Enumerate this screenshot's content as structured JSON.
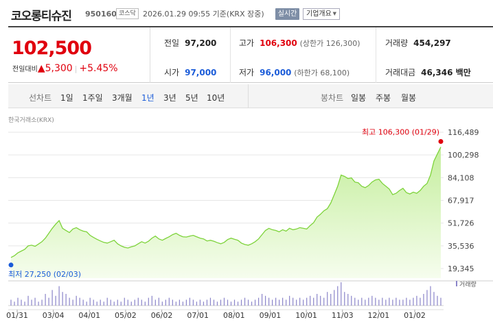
{
  "header": {
    "stock_name": "코오롱티슈진",
    "stock_code": "950160",
    "market": "코스닥",
    "datetime": "2026.01.29 09:55 기준(KRX 장중)",
    "realtime_label": "실시간",
    "overview_label": "기업개요"
  },
  "quote": {
    "current_price": "102,500",
    "change_label": "전일대비",
    "change_value": "5,300",
    "change_arrow": "▲",
    "change_pct": "+5.45%",
    "prev_close_label": "전일",
    "prev_close": "97,200",
    "open_label": "시가",
    "open": "97,000",
    "high_label": "고가",
    "high": "106,300",
    "upper_limit": "(상한가 126,300)",
    "low_label": "저가",
    "low": "96,000",
    "lower_limit": "(하한가 68,100)",
    "volume_label": "거래량",
    "volume": "454,297",
    "trade_value_label": "거래대금",
    "trade_value": "46,346 백만"
  },
  "toolbar": {
    "line_chart_label": "선차트",
    "periods": [
      "1일",
      "1주일",
      "3개월",
      "1년",
      "3년",
      "5년",
      "10년"
    ],
    "active_period": "1년",
    "candle_label": "봉차트",
    "candle_periods": [
      "일봉",
      "주봉",
      "월봉"
    ]
  },
  "source_label": "한국거래소(KRX)",
  "chart_data": {
    "type": "area",
    "y_ticks": [
      "116,489",
      "100,298",
      "84,108",
      "67,917",
      "51,726",
      "35,536",
      "19,345"
    ],
    "ylim": [
      19345,
      116489
    ],
    "x_ticks": [
      "01/31",
      "03/04",
      "04/01",
      "05/02",
      "06/02",
      "07/01",
      "08/01",
      "09/01",
      "10/01",
      "11/03",
      "12/01",
      "01/02"
    ],
    "max_label": "최고 106,300 (01/29)",
    "min_label": "최저 27,250 (02/03)",
    "volume_legend": "거래량",
    "series": [
      {
        "name": "",
        "values": [
          27250,
          28500,
          30500,
          31800,
          33000,
          35500,
          36000,
          35200,
          36800,
          38500,
          41000,
          44500,
          48000,
          51000,
          53500,
          48000,
          46500,
          45000,
          47500,
          48500,
          47000,
          46000,
          45500,
          43000,
          41500,
          40200,
          39000,
          38000,
          37500,
          38500,
          39500,
          37000,
          35500,
          34500,
          34000,
          34800,
          35500,
          37000,
          38500,
          37500,
          38800,
          41000,
          42500,
          40500,
          39500,
          40800,
          42000,
          43500,
          44500,
          43000,
          42000,
          41800,
          42500,
          43000,
          42000,
          41000,
          40500,
          39000,
          39500,
          38800,
          37800,
          37000,
          38000,
          40000,
          41000,
          40200,
          39500,
          37500,
          36500,
          36000,
          37000,
          38500,
          40500,
          43500,
          46500,
          48000,
          47000,
          46500,
          45500,
          47000,
          46000,
          48000,
          47000,
          47500,
          48500,
          48000,
          47500,
          50000,
          52000,
          56000,
          58000,
          60500,
          62000,
          66000,
          72000,
          78000,
          86000,
          85000,
          83500,
          84000,
          81000,
          80500,
          78000,
          77000,
          78500,
          81000,
          82500,
          83000,
          80000,
          78000,
          76000,
          72000,
          73000,
          75000,
          76500,
          73500,
          72500,
          73800,
          73000,
          75000,
          78000,
          80000,
          86000,
          96000,
          101000,
          106000
        ]
      },
      {
        "name": "거래량",
        "values": [
          3,
          2,
          4,
          3,
          2,
          5,
          3,
          4,
          2,
          3,
          6,
          4,
          8,
          5,
          10,
          7,
          6,
          4,
          3,
          5,
          4,
          3,
          2,
          4,
          3,
          2,
          3,
          2,
          4,
          3,
          2,
          3,
          2,
          4,
          3,
          2,
          3,
          4,
          3,
          2,
          4,
          5,
          3,
          4,
          2,
          3,
          4,
          3,
          2,
          3,
          2,
          3,
          4,
          3,
          2,
          3,
          2,
          3,
          4,
          3,
          2,
          3,
          4,
          3,
          2,
          3,
          2,
          3,
          4,
          3,
          2,
          3,
          4,
          6,
          5,
          4,
          3,
          4,
          3,
          4,
          3,
          5,
          4,
          3,
          4,
          3,
          4,
          5,
          4,
          6,
          5,
          4,
          7,
          6,
          8,
          10,
          12,
          7,
          6,
          5,
          4,
          3,
          4,
          3,
          4,
          5,
          4,
          3,
          4,
          3,
          4,
          3,
          4,
          3,
          3,
          4,
          3,
          4,
          5,
          4,
          6,
          8,
          10,
          7,
          5,
          4
        ]
      }
    ]
  }
}
